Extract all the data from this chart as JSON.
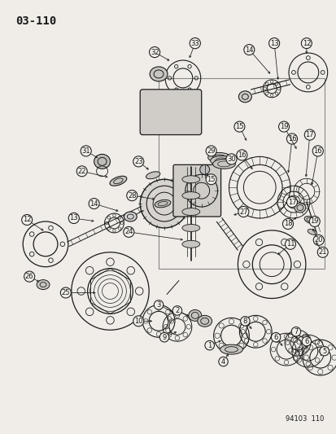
{
  "bg_color": "#f0ede8",
  "fg_color": "#1a1a1a",
  "fig_width": 4.14,
  "fig_height": 5.33,
  "dpi": 100,
  "title": "03-110",
  "diagram_code": "94103  110",
  "title_fontsize": 10,
  "code_fontsize": 6
}
